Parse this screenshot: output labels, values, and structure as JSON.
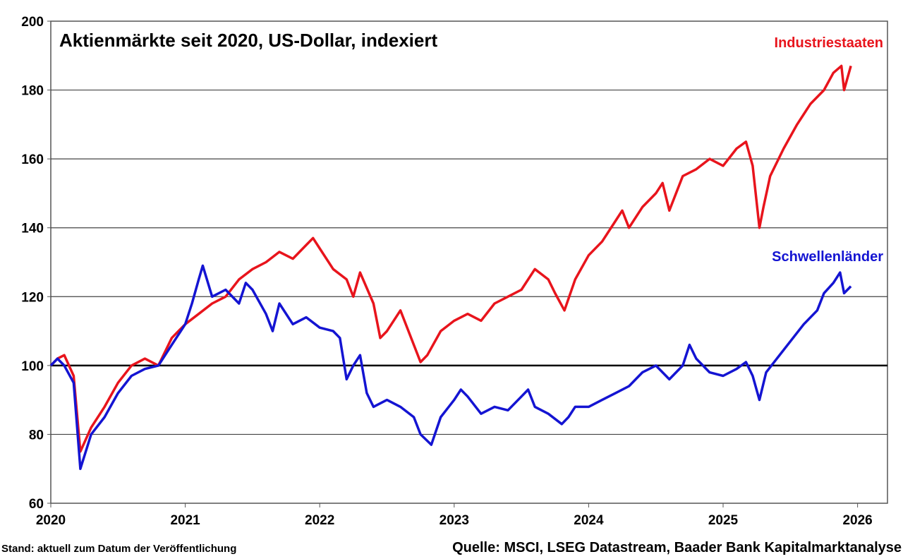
{
  "chart_data": {
    "type": "line",
    "title": "Aktienmärkte seit 2020, US-Dollar, indexiert",
    "xlabel": "",
    "ylabel": "",
    "xlim": [
      2020,
      2026.22
    ],
    "ylim": [
      60,
      200
    ],
    "x_ticks": [
      "2020",
      "2021",
      "2022",
      "2023",
      "2024",
      "2025",
      "2026"
    ],
    "y_ticks": [
      "60",
      "80",
      "100",
      "120",
      "140",
      "160",
      "180",
      "200"
    ],
    "grid": true,
    "reference_line": 100,
    "legend_placement": "inline-right",
    "series": [
      {
        "name": "Industriestaaten",
        "color": "#e8141c",
        "x": [
          2020,
          2020.05,
          2020.1,
          2020.17,
          2020.22,
          2020.3,
          2020.4,
          2020.5,
          2020.6,
          2020.7,
          2020.8,
          2020.9,
          2021,
          2021.1,
          2021.2,
          2021.3,
          2021.4,
          2021.5,
          2021.6,
          2021.7,
          2021.8,
          2021.9,
          2021.95,
          2022,
          2022.1,
          2022.2,
          2022.25,
          2022.3,
          2022.4,
          2022.45,
          2022.5,
          2022.6,
          2022.7,
          2022.75,
          2022.8,
          2022.9,
          2023,
          2023.1,
          2023.2,
          2023.3,
          2023.4,
          2023.5,
          2023.6,
          2023.7,
          2023.75,
          2023.82,
          2023.9,
          2024,
          2024.1,
          2024.2,
          2024.25,
          2024.3,
          2024.4,
          2024.5,
          2024.55,
          2024.6,
          2024.65,
          2024.7,
          2024.8,
          2024.9,
          2025,
          2025.1,
          2025.17,
          2025.22,
          2025.27,
          2025.3,
          2025.35,
          2025.45,
          2025.55,
          2025.65,
          2025.75,
          2025.82,
          2025.88,
          2025.9,
          2025.95
        ],
        "y": [
          100,
          102,
          103,
          97,
          75,
          82,
          88,
          95,
          100,
          102,
          100,
          108,
          112,
          115,
          118,
          120,
          125,
          128,
          130,
          133,
          131,
          135,
          137,
          134,
          128,
          125,
          120,
          127,
          118,
          108,
          110,
          116,
          106,
          101,
          103,
          110,
          113,
          115,
          113,
          118,
          120,
          122,
          128,
          125,
          121,
          116,
          125,
          132,
          136,
          142,
          145,
          140,
          146,
          150,
          153,
          145,
          150,
          155,
          157,
          160,
          158,
          163,
          165,
          158,
          140,
          146,
          155,
          163,
          170,
          176,
          180,
          185,
          187,
          180,
          187
        ]
      },
      {
        "name": "Schwellenländer",
        "color": "#1414d2",
        "x": [
          2020,
          2020.05,
          2020.1,
          2020.17,
          2020.22,
          2020.3,
          2020.4,
          2020.5,
          2020.6,
          2020.7,
          2020.8,
          2020.9,
          2021,
          2021.05,
          2021.1,
          2021.13,
          2021.2,
          2021.3,
          2021.4,
          2021.45,
          2021.5,
          2021.6,
          2021.65,
          2021.7,
          2021.8,
          2021.9,
          2022,
          2022.1,
          2022.15,
          2022.2,
          2022.25,
          2022.3,
          2022.35,
          2022.4,
          2022.5,
          2022.6,
          2022.7,
          2022.75,
          2022.83,
          2022.9,
          2023,
          2023.05,
          2023.1,
          2023.2,
          2023.3,
          2023.4,
          2023.5,
          2023.55,
          2023.6,
          2023.7,
          2023.8,
          2023.85,
          2023.9,
          2024,
          2024.1,
          2024.2,
          2024.3,
          2024.4,
          2024.5,
          2024.6,
          2024.7,
          2024.75,
          2024.8,
          2024.9,
          2025,
          2025.1,
          2025.17,
          2025.22,
          2025.27,
          2025.32,
          2025.4,
          2025.5,
          2025.6,
          2025.7,
          2025.75,
          2025.82,
          2025.87,
          2025.9,
          2025.95
        ],
        "y": [
          100,
          102,
          100,
          95,
          70,
          80,
          85,
          92,
          97,
          99,
          100,
          106,
          112,
          118,
          125,
          129,
          120,
          122,
          118,
          124,
          122,
          115,
          110,
          118,
          112,
          114,
          111,
          110,
          108,
          96,
          100,
          103,
          92,
          88,
          90,
          88,
          85,
          80,
          77,
          85,
          90,
          93,
          91,
          86,
          88,
          87,
          91,
          93,
          88,
          86,
          83,
          85,
          88,
          88,
          90,
          92,
          94,
          98,
          100,
          96,
          100,
          106,
          102,
          98,
          97,
          99,
          101,
          97,
          90,
          98,
          102,
          107,
          112,
          116,
          121,
          124,
          127,
          121,
          123
        ]
      }
    ],
    "footer_left": "Stand: aktuell zum Datum der Veröffentlichung",
    "footer_right": "Quelle: MSCI, LSEG Datastream, Baader Bank Kapitalmarktanalyse"
  }
}
